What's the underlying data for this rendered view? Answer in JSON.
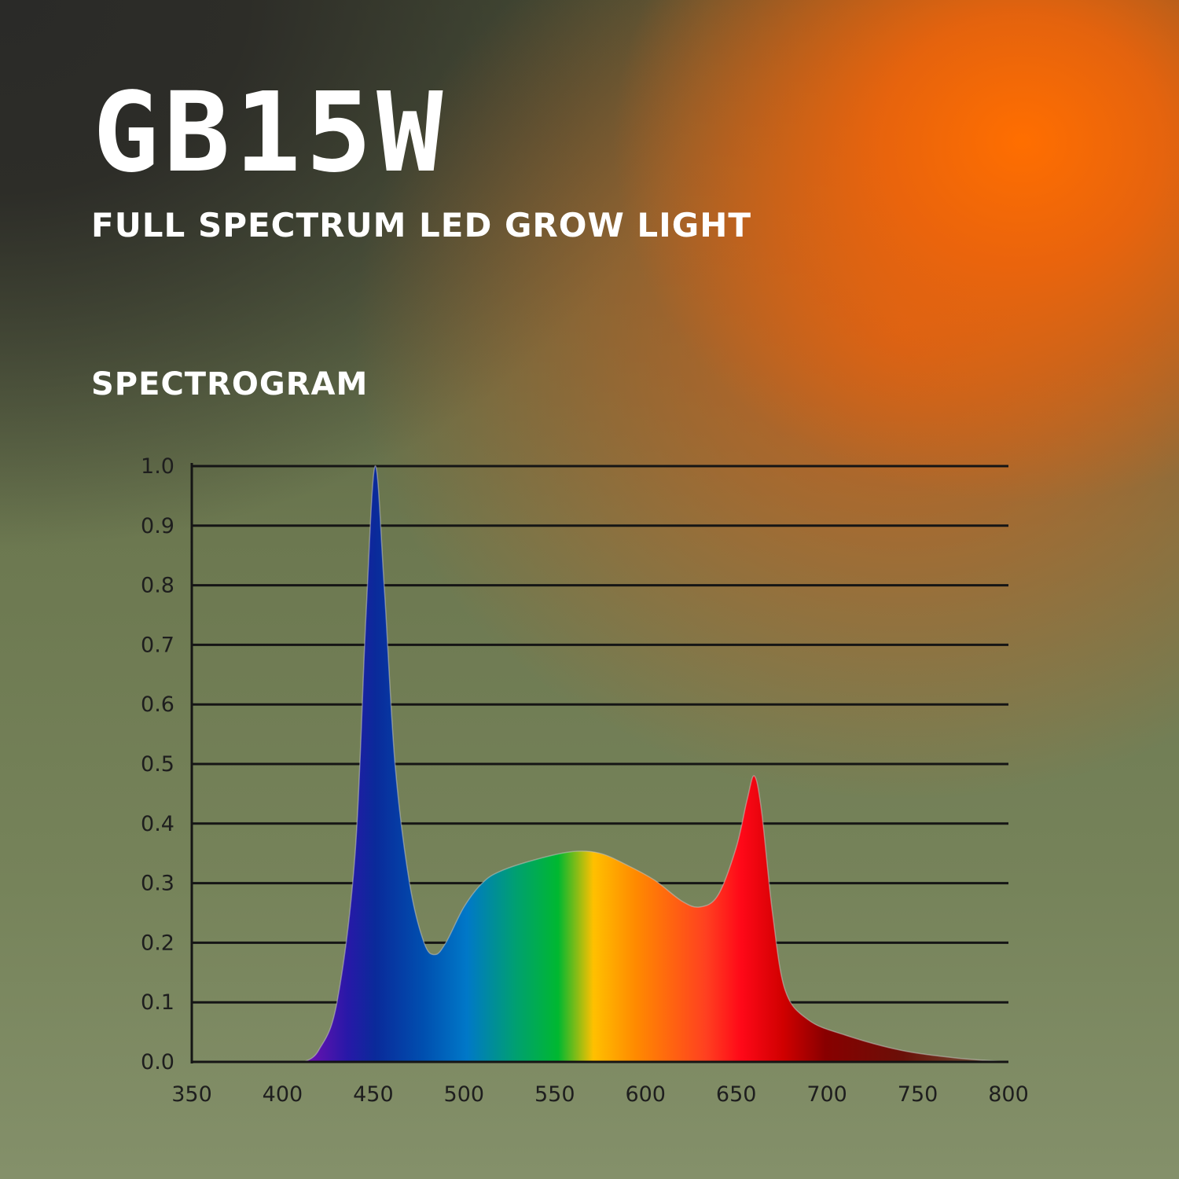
{
  "header": {
    "logo": "GB15W",
    "subtitle": "FULL SPECTRUM LED GROW LIGHT",
    "section_title": "SPECTROGRAM"
  },
  "chart_data": {
    "type": "area",
    "title": "",
    "xlabel": "",
    "ylabel": "",
    "xlim": [
      350,
      800
    ],
    "ylim": [
      0,
      1.0
    ],
    "grid": true,
    "x_ticks": [
      "350",
      "400",
      "450",
      "500",
      "550",
      "600",
      "650",
      "700",
      "750",
      "800"
    ],
    "y_ticks": [
      "0.0",
      "0.1",
      "0.2",
      "0.3",
      "0.4",
      "0.5",
      "0.6",
      "0.7",
      "0.8",
      "0.9",
      "1.0"
    ],
    "fill": "visible-spectrum gradient",
    "series": [
      {
        "x": [
          412,
          420,
          430,
          440,
          446,
          451,
          456,
          462,
          470,
          478,
          484,
          490,
          500,
          510,
          520,
          540,
          560,
          575,
          590,
          605,
          620,
          630,
          640,
          650,
          656,
          660,
          664,
          670,
          677,
          690,
          710,
          740,
          770,
          800
        ],
        "y": [
          0,
          0.02,
          0.1,
          0.35,
          0.75,
          1.0,
          0.8,
          0.5,
          0.3,
          0.2,
          0.18,
          0.2,
          0.26,
          0.3,
          0.32,
          0.34,
          0.353,
          0.35,
          0.33,
          0.305,
          0.27,
          0.26,
          0.28,
          0.36,
          0.44,
          0.48,
          0.42,
          0.25,
          0.12,
          0.07,
          0.045,
          0.02,
          0.007,
          0
        ]
      }
    ]
  }
}
